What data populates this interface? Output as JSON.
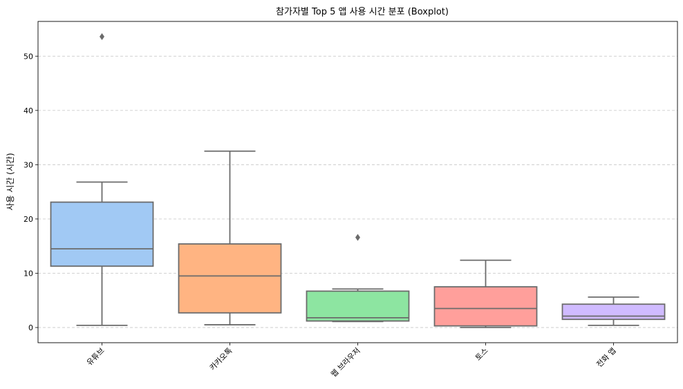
{
  "chart_data": {
    "type": "boxplot",
    "title": "참가자별 Top 5 앱 사용 시간 분포 (Boxplot)",
    "xlabel": "",
    "ylabel": "사용 시간 (시간)",
    "ylim": [
      -2.8,
      56.4
    ],
    "yticks": [
      0,
      10,
      20,
      30,
      40,
      50
    ],
    "grid": "y-dashed",
    "legend": "none",
    "categories": [
      "유튜브",
      "카카오톡",
      "웹 브라우저",
      "토스",
      "전화 앱"
    ],
    "boxes": [
      {
        "category": "유튜브",
        "whisker_low": 0.4,
        "q1": 11.3,
        "median": 14.5,
        "q3": 23.1,
        "whisker_high": 26.8,
        "outliers": [
          53.6
        ],
        "color": "#a1c9f4"
      },
      {
        "category": "카카오톡",
        "whisker_low": 0.5,
        "q1": 2.7,
        "median": 9.5,
        "q3": 15.4,
        "whisker_high": 32.5,
        "outliers": [],
        "color": "#ffb482"
      },
      {
        "category": "웹 브라우저",
        "whisker_low": 1.1,
        "q1": 1.2,
        "median": 1.8,
        "q3": 6.7,
        "whisker_high": 7.1,
        "outliers": [
          16.6
        ],
        "color": "#8de5a1"
      },
      {
        "category": "토스",
        "whisker_low": 0.0,
        "q1": 0.3,
        "median": 3.5,
        "q3": 7.5,
        "whisker_high": 12.4,
        "outliers": [],
        "color": "#ff9f9b"
      },
      {
        "category": "전화 앱",
        "whisker_low": 0.4,
        "q1": 1.5,
        "median": 2.1,
        "q3": 4.3,
        "whisker_high": 5.6,
        "outliers": [],
        "color": "#d0bbff"
      }
    ],
    "line_color": "#6b6b6b"
  }
}
